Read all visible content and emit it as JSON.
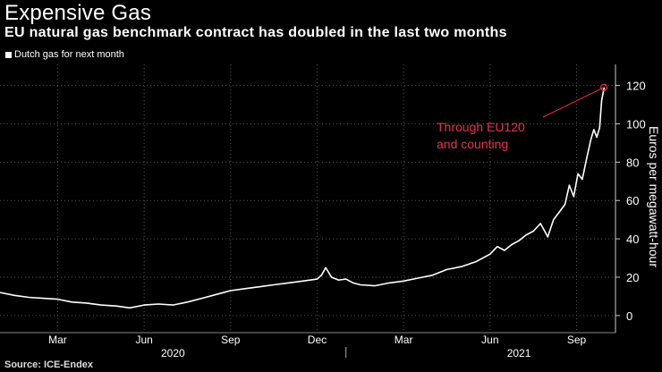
{
  "header": {
    "title": "Expensive Gas",
    "subtitle": "EU natural gas benchmark contract has doubled in the last two months"
  },
  "source": "Source: ICE-Endex",
  "colors": {
    "background": "#000000",
    "line": "#ffffff",
    "annotation": "#e8334a",
    "grid": "#555555",
    "text": "#ffffff"
  },
  "chart_data": {
    "type": "line",
    "title": "Expensive Gas",
    "subtitle": "EU natural gas benchmark contract has doubled in the last two months",
    "legend": [
      "Dutch gas for next month"
    ],
    "legend_position": "top-left",
    "xlabel": "",
    "ylabel": "Euros per megawatt-hour",
    "ylim": [
      -8,
      131
    ],
    "yticks": [
      0,
      20,
      40,
      60,
      80,
      100,
      120
    ],
    "y_axis_side": "right",
    "grid": true,
    "x_tick_months": [
      2,
      5,
      8,
      11,
      14,
      17,
      20
    ],
    "x_tick_labels": [
      "Mar",
      "Jun",
      "Sep",
      "Dec",
      "Mar",
      "Jun",
      "Sep"
    ],
    "year_labels": [
      {
        "label": "2020",
        "month": 6
      },
      {
        "label": "2021",
        "month": 18
      }
    ],
    "year_divider_month": 12,
    "annotation": {
      "lines": [
        "Through EU120",
        "and counting"
      ],
      "point": {
        "month": 20.95,
        "value": 119
      }
    },
    "series": [
      {
        "name": "Dutch gas for next month",
        "x": [
          0,
          0.5,
          1,
          1.5,
          2,
          2.5,
          3,
          3.5,
          4,
          4.5,
          5,
          5.5,
          6,
          6.5,
          7,
          7.5,
          8,
          8.5,
          9,
          9.5,
          10,
          10.5,
          11,
          11.15,
          11.3,
          11.5,
          11.75,
          12,
          12.25,
          12.5,
          13,
          13.5,
          14,
          14.5,
          15,
          15.5,
          16,
          16.5,
          17,
          17.25,
          17.5,
          17.75,
          18,
          18.25,
          18.5,
          18.75,
          19,
          19.2,
          19.4,
          19.6,
          19.75,
          19.9,
          20.05,
          20.2,
          20.35,
          20.5,
          20.6,
          20.7,
          20.8,
          20.87,
          20.92,
          20.96
        ],
        "values": [
          12,
          10.5,
          9.5,
          9,
          8.5,
          7,
          6.5,
          5.5,
          5,
          4,
          5.5,
          6,
          5.5,
          7,
          9,
          11,
          13,
          14,
          15,
          16,
          17,
          18,
          19,
          21,
          25,
          20,
          18.5,
          19,
          17,
          16,
          15.5,
          17,
          18,
          19.5,
          21,
          24,
          25.5,
          28,
          32,
          36,
          34,
          37,
          39,
          42,
          44,
          48,
          41,
          50,
          54,
          58,
          68,
          62,
          74,
          71,
          82,
          92,
          97,
          93,
          98,
          112,
          116,
          119
        ]
      }
    ]
  }
}
